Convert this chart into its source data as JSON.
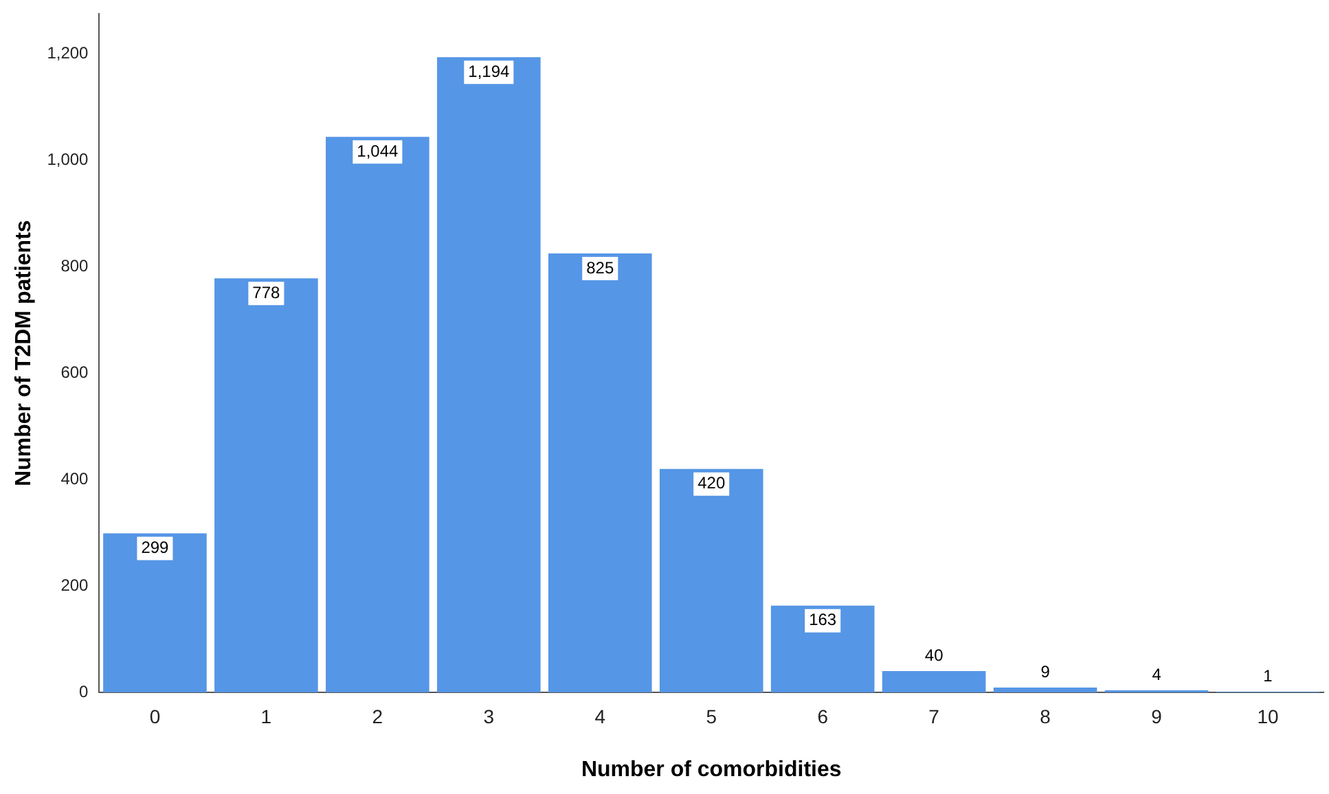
{
  "chart_data": {
    "type": "bar",
    "xlabel": "Number of comorbidities",
    "ylabel": "Number of T2DM patients",
    "categories": [
      "0",
      "1",
      "2",
      "3",
      "4",
      "5",
      "6",
      "7",
      "8",
      "9",
      "10"
    ],
    "values": [
      299,
      778,
      1044,
      1194,
      825,
      420,
      163,
      40,
      9,
      4,
      1
    ],
    "value_labels": [
      "299",
      "778",
      "1,044",
      "1,194",
      "825",
      "420",
      "163",
      "40",
      "9",
      "4",
      "1"
    ],
    "color": "#5596e6",
    "ylim": [
      0,
      1275
    ],
    "yticks": [
      0,
      200,
      400,
      600,
      800,
      {
        "value": 1000,
        "label": "1,000"
      },
      {
        "value": 1200,
        "label": "1,200"
      }
    ],
    "grid": false,
    "legend": false
  }
}
